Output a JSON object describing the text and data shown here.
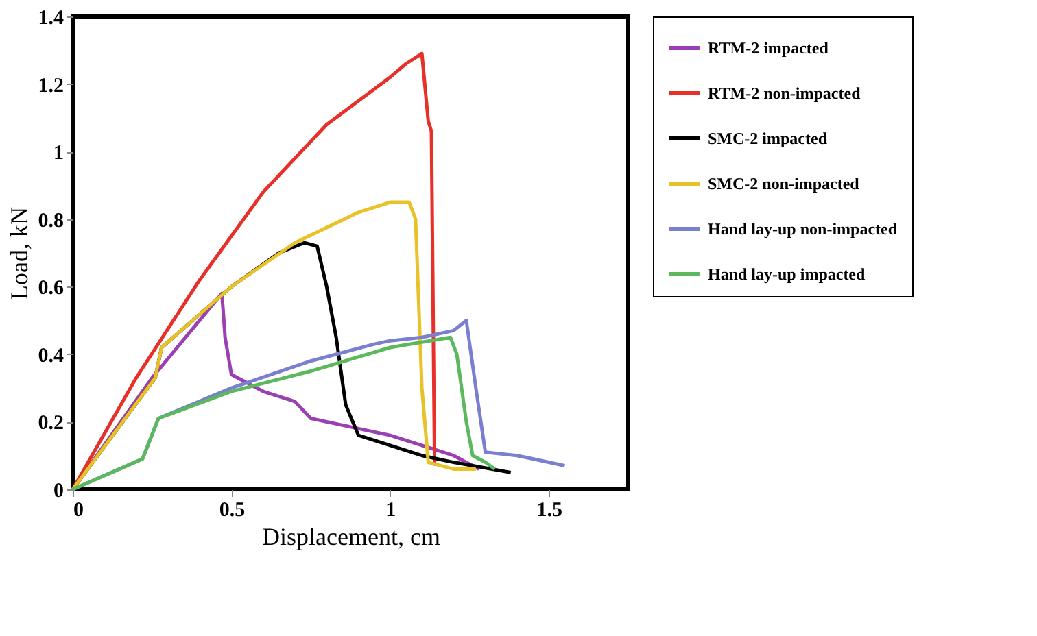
{
  "chart_data": {
    "type": "line",
    "xlabel": "Displacement, cm",
    "ylabel": "Load, kN",
    "xlim": [
      0,
      1.75
    ],
    "xticks": [
      0,
      0.5,
      1,
      1.5
    ],
    "ylim": [
      0,
      1.4
    ],
    "yticks": [
      0,
      0.2,
      0.4,
      0.6,
      0.8,
      1,
      1.2,
      1.4
    ],
    "grid": false,
    "legend": "right",
    "marker": "none",
    "line_style": "solid",
    "series": [
      {
        "name": "RTM-2 impacted",
        "color": "#9b3fb5",
        "x": [
          0,
          0.25,
          0.47,
          0.48,
          0.5,
          0.6,
          0.7,
          0.75,
          0.85,
          1.0,
          1.1,
          1.2,
          1.28
        ],
        "values": [
          0,
          0.33,
          0.58,
          0.45,
          0.34,
          0.29,
          0.26,
          0.21,
          0.19,
          0.16,
          0.13,
          0.1,
          0.06
        ]
      },
      {
        "name": "RTM-2 non-impacted",
        "color": "#e8302a",
        "x": [
          0,
          0.2,
          0.4,
          0.6,
          0.8,
          1.0,
          1.05,
          1.1,
          1.12,
          1.13,
          1.14
        ],
        "values": [
          0,
          0.33,
          0.62,
          0.88,
          1.08,
          1.22,
          1.26,
          1.29,
          1.09,
          1.06,
          0.07
        ]
      },
      {
        "name": "SMC-2 impacted",
        "color": "#000000",
        "x": [
          0,
          0.26,
          0.28,
          0.5,
          0.65,
          0.73,
          0.77,
          0.8,
          0.83,
          0.86,
          0.9,
          1.0,
          1.1,
          1.2,
          1.38
        ],
        "values": [
          0,
          0.33,
          0.42,
          0.6,
          0.7,
          0.73,
          0.72,
          0.6,
          0.45,
          0.25,
          0.16,
          0.13,
          0.1,
          0.08,
          0.05
        ]
      },
      {
        "name": "SMC-2 non-impacted",
        "color": "#e8c228",
        "x": [
          0,
          0.26,
          0.28,
          0.5,
          0.7,
          0.9,
          1.0,
          1.06,
          1.08,
          1.1,
          1.12,
          1.2,
          1.27
        ],
        "values": [
          0,
          0.33,
          0.42,
          0.6,
          0.73,
          0.82,
          0.85,
          0.85,
          0.8,
          0.3,
          0.08,
          0.06,
          0.06
        ]
      },
      {
        "name": "Hand lay-up non-impacted",
        "color": "#7b7fd0",
        "x": [
          0,
          0.22,
          0.27,
          0.5,
          0.75,
          0.95,
          1.0,
          1.1,
          1.2,
          1.24,
          1.27,
          1.3,
          1.4,
          1.55
        ],
        "values": [
          0,
          0.09,
          0.21,
          0.3,
          0.38,
          0.43,
          0.44,
          0.45,
          0.47,
          0.5,
          0.3,
          0.11,
          0.1,
          0.07
        ]
      },
      {
        "name": "Hand lay-up impacted",
        "color": "#5cb85c",
        "x": [
          0,
          0.22,
          0.27,
          0.5,
          0.75,
          1.0,
          1.19,
          1.21,
          1.24,
          1.26,
          1.3,
          1.33
        ],
        "values": [
          0,
          0.09,
          0.21,
          0.29,
          0.35,
          0.42,
          0.45,
          0.4,
          0.2,
          0.1,
          0.08,
          0.06
        ]
      }
    ]
  }
}
